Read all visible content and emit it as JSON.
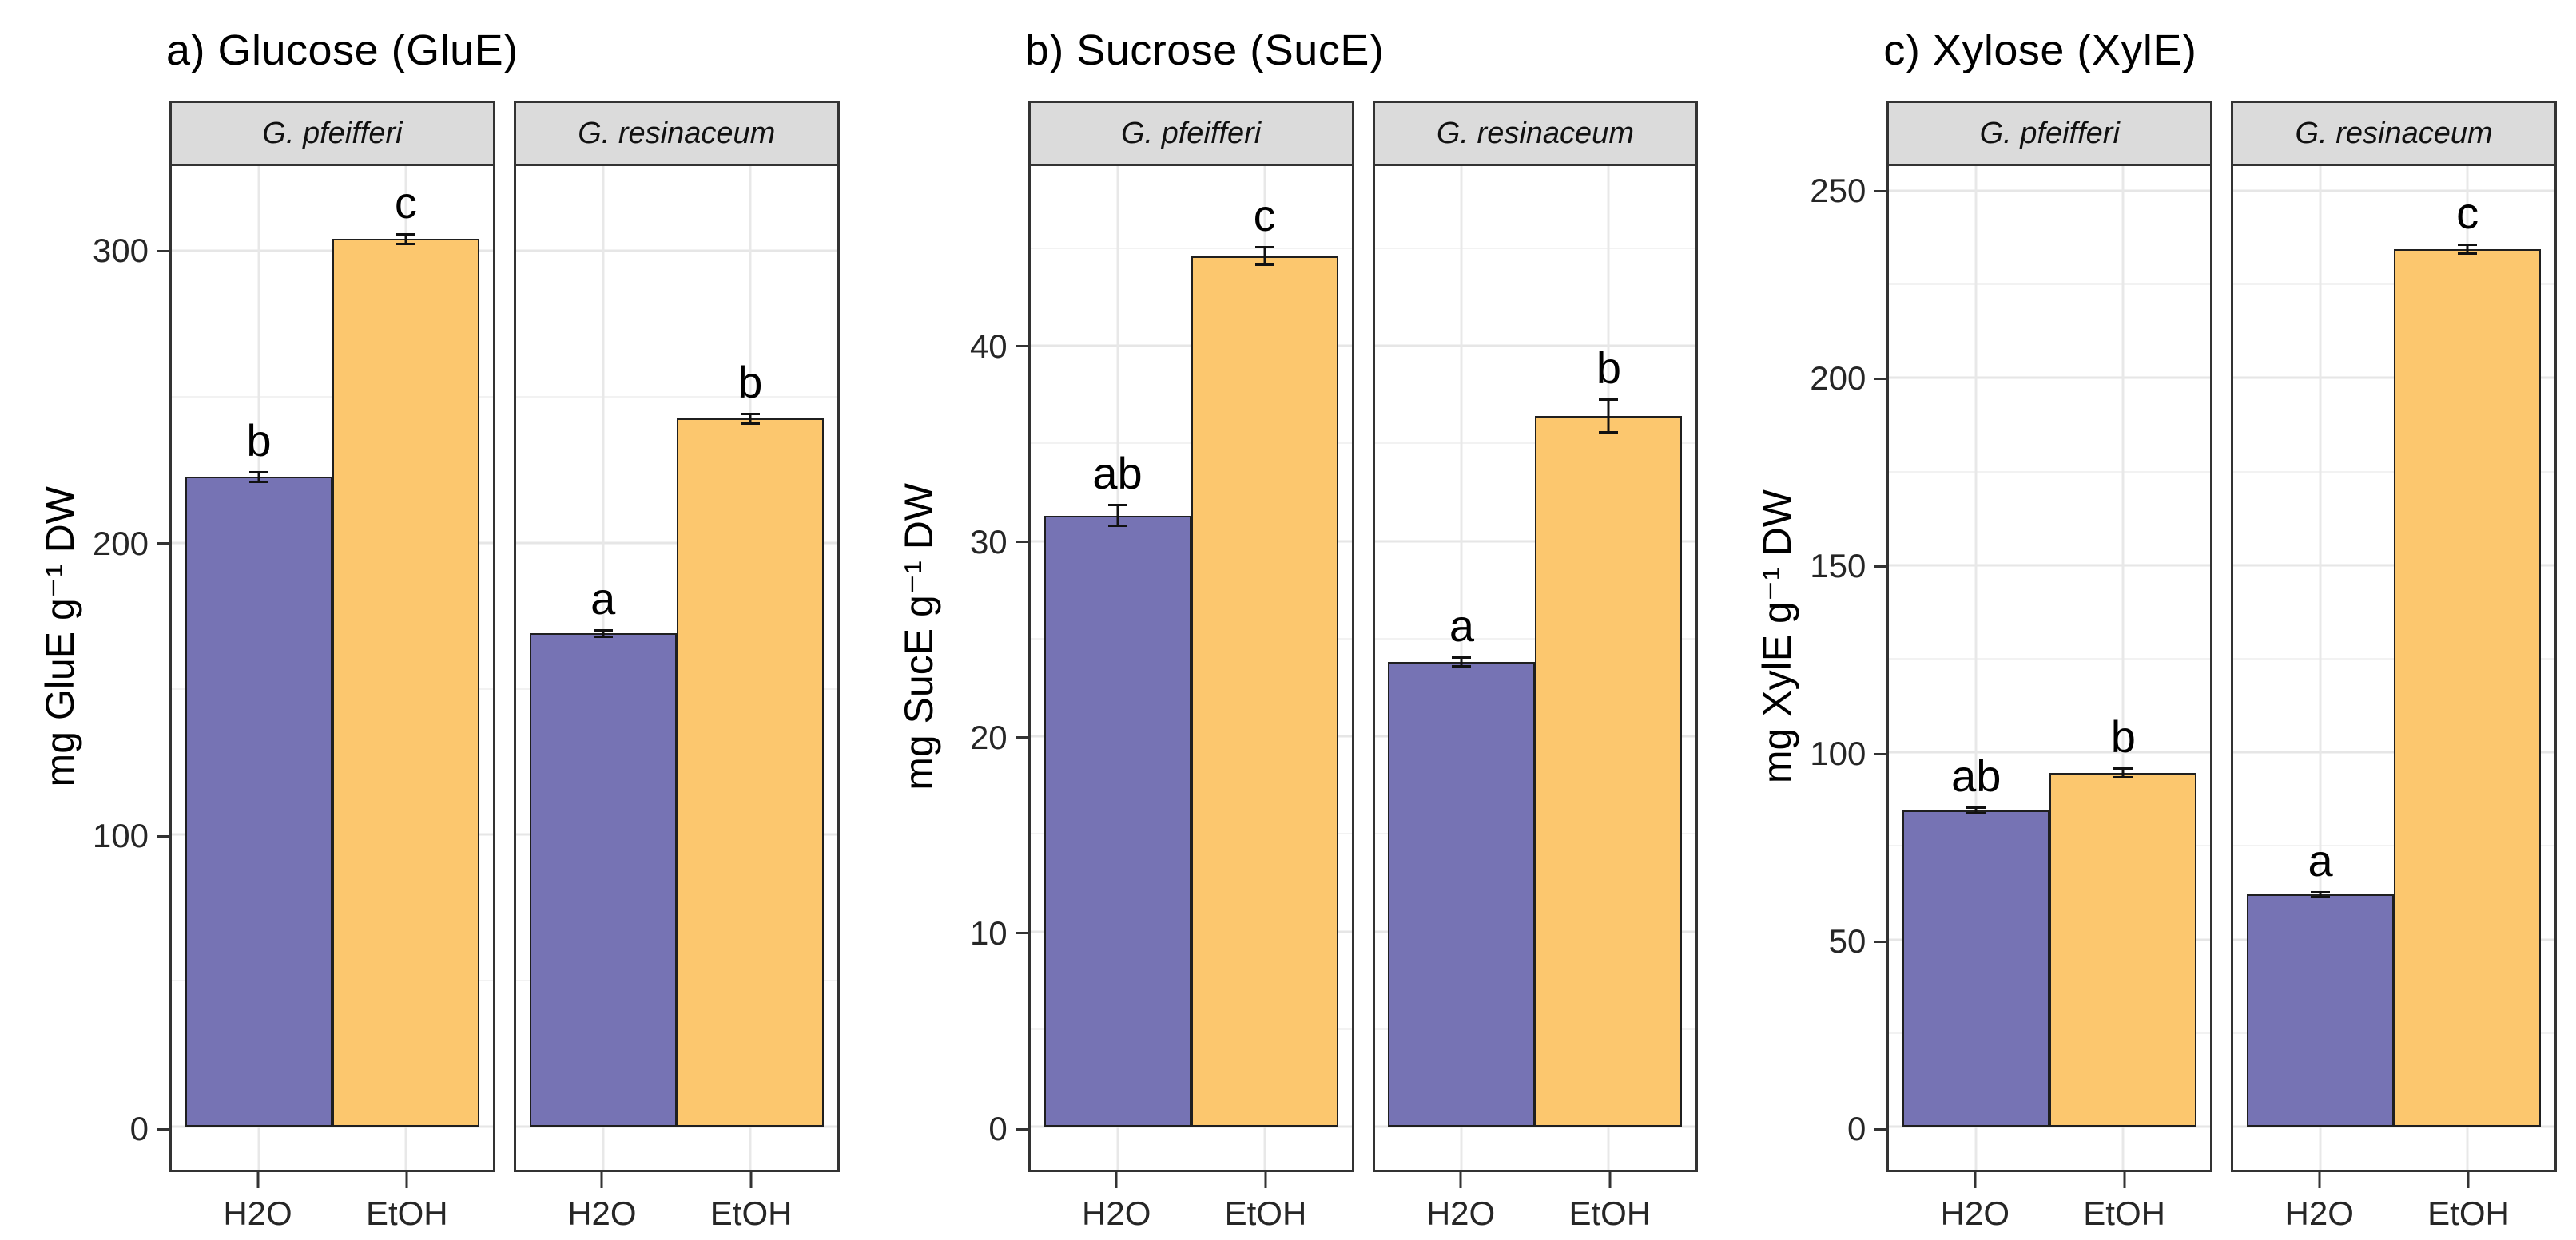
{
  "series_colors": {
    "H2O": "#7673B4",
    "EtOH": "#FCC76E"
  },
  "chart_data": [
    {
      "panel_tag": "a",
      "type": "bar",
      "title": "a) Glucose (GluE)",
      "ylabel": "mg GluE g⁻¹ DW",
      "categories": [
        "H2O",
        "EtOH"
      ],
      "facets": [
        {
          "name": "G. pfeifferi",
          "values": [
            222.5,
            304
          ],
          "errors": [
            2,
            2
          ],
          "sig_letters": [
            "b",
            "c"
          ]
        },
        {
          "name": "G. resinaceum",
          "values": [
            169,
            242.5
          ],
          "errors": [
            1.5,
            2
          ],
          "sig_letters": [
            "a",
            "b"
          ]
        }
      ],
      "axis": {
        "ticks": [
          0,
          100,
          200,
          300
        ],
        "minor_ticks": [
          50,
          150,
          250
        ],
        "ylim": [
          0,
          329
        ],
        "grid": true,
        "legend_position": "none"
      }
    },
    {
      "panel_tag": "b",
      "type": "bar",
      "title": "b) Sucrose (SucE)",
      "ylabel": "mg SucE g⁻¹ DW",
      "categories": [
        "H2O",
        "EtOH"
      ],
      "facets": [
        {
          "name": "G. pfeifferi",
          "values": [
            31.3,
            44.6
          ],
          "errors": [
            0.6,
            0.5
          ],
          "sig_letters": [
            "ab",
            "c"
          ]
        },
        {
          "name": "G. resinaceum",
          "values": [
            23.8,
            36.4
          ],
          "errors": [
            0.3,
            0.9
          ],
          "sig_letters": [
            "a",
            "b"
          ]
        }
      ],
      "axis": {
        "ticks": [
          0,
          10,
          20,
          30,
          40
        ],
        "minor_ticks": [
          5,
          15,
          25,
          35,
          45
        ],
        "ylim": [
          0,
          49.2
        ],
        "grid": true,
        "legend_position": "none"
      }
    },
    {
      "panel_tag": "c",
      "type": "bar",
      "title": "c) Xylose (XylE)",
      "ylabel": "mg XylE g⁻¹ DW",
      "categories": [
        "H2O",
        "EtOH"
      ],
      "facets": [
        {
          "name": "G. pfeifferi",
          "values": [
            84.5,
            94.5
          ],
          "errors": [
            1,
            1.5
          ],
          "sig_letters": [
            "ab",
            "b"
          ]
        },
        {
          "name": "G. resinaceum",
          "values": [
            62,
            234.5
          ],
          "errors": [
            1,
            1.5
          ],
          "sig_letters": [
            "a",
            "c"
          ]
        }
      ],
      "axis": {
        "ticks": [
          0,
          50,
          100,
          150,
          200,
          250
        ],
        "minor_ticks": [
          25,
          75,
          125,
          175,
          225
        ],
        "ylim": [
          0,
          256.6
        ],
        "grid": true,
        "legend_position": "none"
      }
    }
  ]
}
